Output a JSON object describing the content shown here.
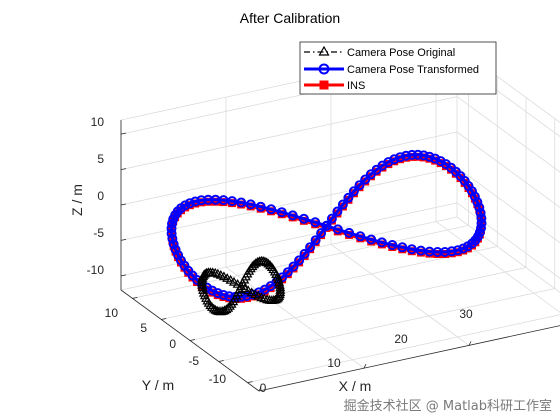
{
  "chart_data": {
    "type": "line",
    "title": "After Calibration",
    "xlabel": "X / m",
    "ylabel": "Y / m",
    "zlabel": "Z / m",
    "xlim": [
      0,
      32
    ],
    "ylim": [
      -12,
      12
    ],
    "zlim": [
      -12,
      12
    ],
    "xticks": [
      "0",
      "10",
      "20",
      "30"
    ],
    "yticks": [
      "-10",
      "-5",
      "0",
      "5",
      "10"
    ],
    "zticks": [
      "-10",
      "-5",
      "0",
      "5",
      "10"
    ],
    "grid": true,
    "legend_position": "top-right",
    "series": [
      {
        "name": "Camera Pose Original",
        "color": "#000000",
        "marker": "triangle",
        "line": "dash-dot",
        "shape": "figure-eight",
        "x_center": 3.5,
        "x_amplitude": 3.5,
        "y_center": -2.5,
        "y_amplitude": 2.5,
        "z_center": -4,
        "z_amplitude": 2
      },
      {
        "name": "Camera Pose Transformed",
        "color": "#0000ff",
        "marker": "circle",
        "line": "solid",
        "shape": "figure-eight",
        "x_center": 13,
        "x_amplitude": 14,
        "y_center": 0,
        "y_amplitude": 9,
        "z_center": 0,
        "z_amplitude": 4
      },
      {
        "name": "INS",
        "color": "#ff0000",
        "marker": "square",
        "line": "solid",
        "shape": "figure-eight",
        "x_center": 13,
        "x_amplitude": 14,
        "y_center": 0,
        "y_amplitude": 9,
        "z_center": 0,
        "z_amplitude": 4
      }
    ]
  },
  "watermark": "掘金技术社区 @ Matlab科研工作室"
}
